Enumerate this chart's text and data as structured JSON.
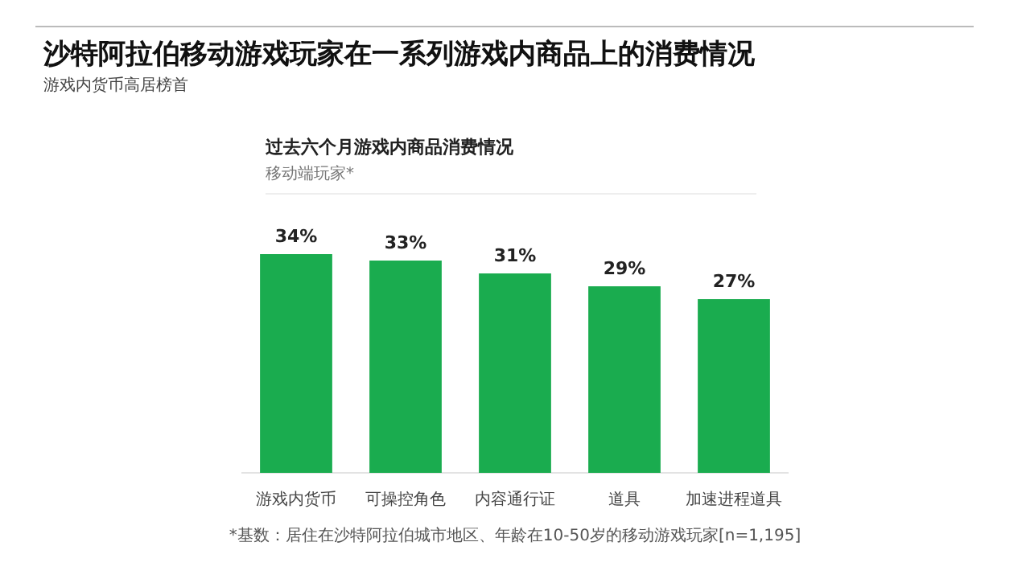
{
  "chart_data": {
    "type": "bar",
    "title": "沙特阿拉伯移动游戏玩家在一系列游戏内商品上的消费情况",
    "subtitle": "游戏内货币高居榜首",
    "categories": [
      "游戏内货币",
      "可操控角色",
      "内容通行证",
      "道具",
      "加速进程道具"
    ],
    "values": [
      34,
      33,
      31,
      29,
      27
    ],
    "value_labels": [
      "34%",
      "33%",
      "31%",
      "29%",
      "27%"
    ],
    "color": "#1aac4f",
    "tick_labels": "x",
    "grid": false,
    "legend": false,
    "annotations": [
      "过去六个月游戏内商品消费情况",
      "移动端玩家*",
      "*基数：居住在沙特阿拉伯城市地区、年龄在10-50岁的移动游戏玩家[n=1,195]"
    ]
  }
}
